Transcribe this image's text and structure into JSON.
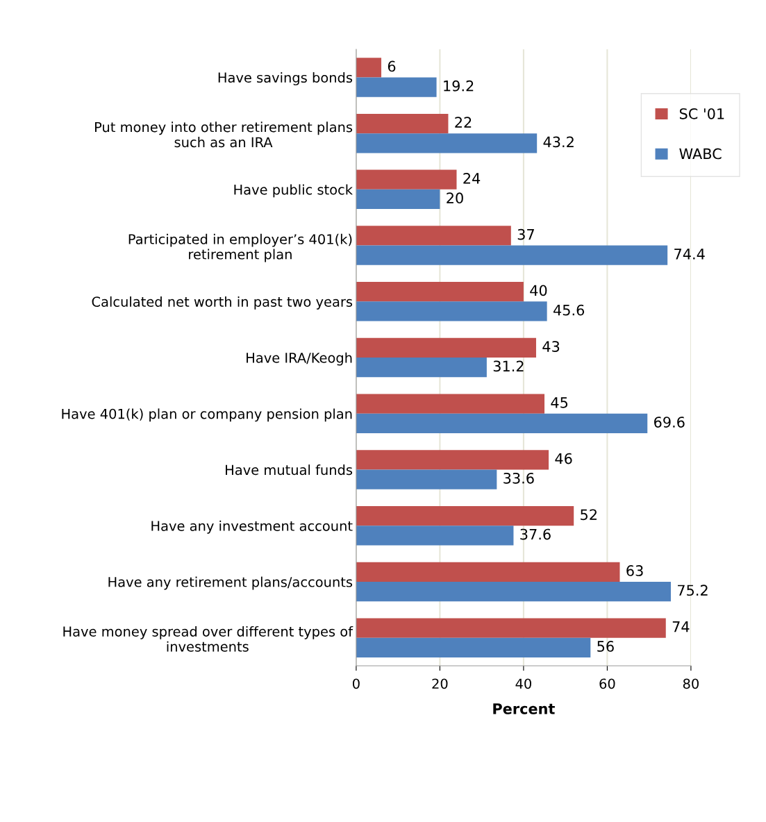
{
  "chart_data": {
    "type": "bar",
    "orientation": "horizontal",
    "xlabel": "Percent",
    "categories": [
      "Have savings bonds",
      "Put money into other retirement plans\nsuch as an IRA",
      "Have public stock",
      "Participated in employer’s 401(k)\nretirement plan",
      "Calculated net worth in past two years",
      "Have IRA/Keogh",
      "Have 401(k) plan or company pension plan",
      "Have mutual funds",
      "Have any investment account",
      "Have any retirement plans/accounts",
      "Have money spread over different types of\ninvestments"
    ],
    "series": [
      {
        "name": "SC '01",
        "color": "#c0504d",
        "values": [
          6,
          22,
          24,
          37,
          40,
          43,
          45,
          46,
          52,
          63,
          74
        ]
      },
      {
        "name": "WABC",
        "color": "#4f81bd",
        "values": [
          19.2,
          43.2,
          20,
          74.4,
          45.6,
          31.2,
          69.6,
          33.6,
          37.6,
          75.2,
          56
        ]
      }
    ],
    "xlim": [
      0,
      80
    ],
    "xticks": [
      0,
      20,
      40,
      60,
      80
    ],
    "grid": "x",
    "legend": "top right",
    "data_labels": true
  }
}
